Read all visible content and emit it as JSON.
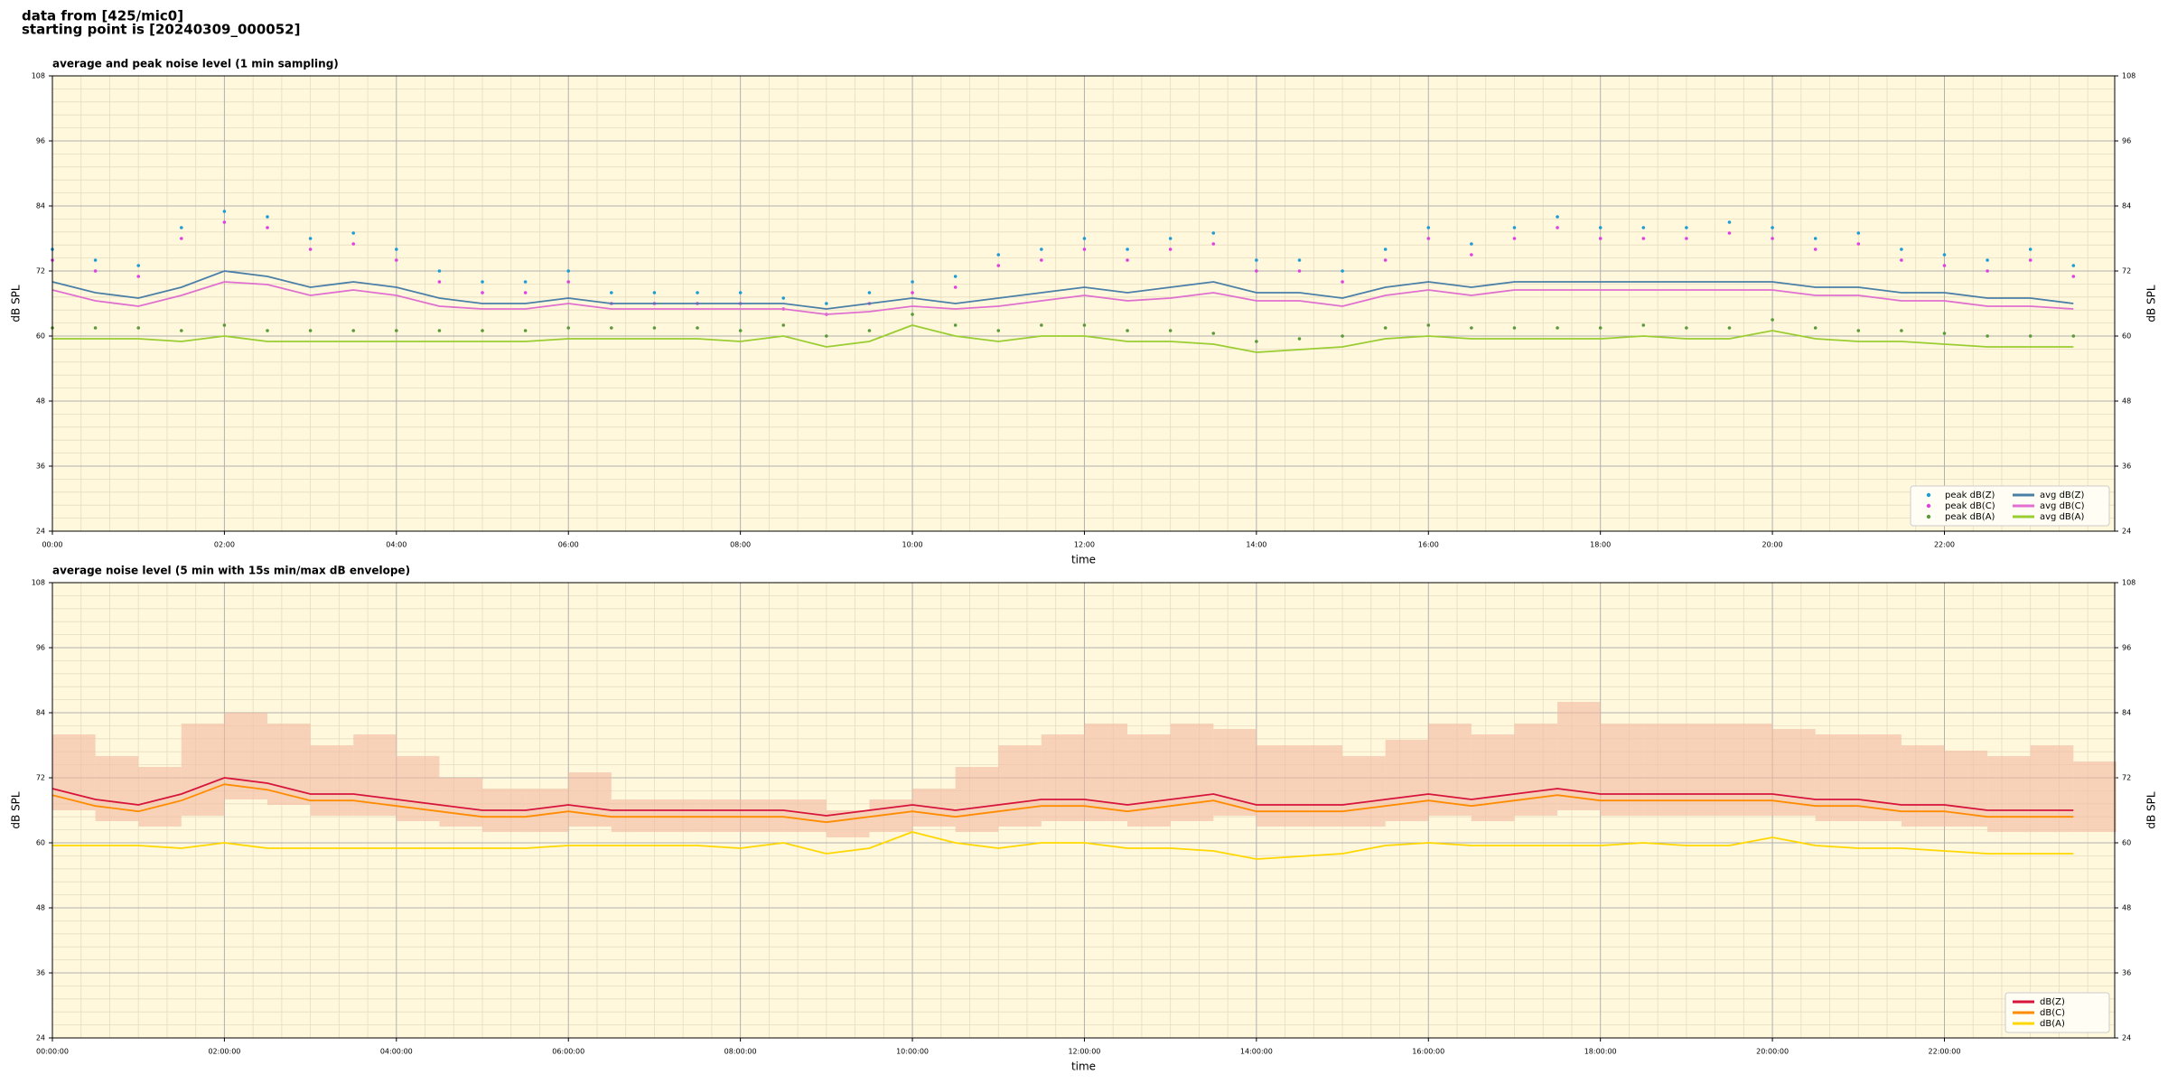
{
  "title_lines": [
    "data from [425/mic0]",
    "starting point is [20240309_000052]"
  ],
  "chart_data": [
    {
      "type": "line",
      "title": "average and peak noise level (1 min sampling)",
      "xlabel": "time",
      "ylabel": "dB SPL",
      "background": "#fff8dc",
      "grid": true,
      "minor_divisions_y": 5,
      "minor_divisions_x": 6,
      "legend": "lower right",
      "legend_columns": 2,
      "xlim": [
        0,
        23.98
      ],
      "ylim": [
        24,
        108
      ],
      "yticks": [
        24,
        36,
        48,
        60,
        72,
        84,
        96,
        108
      ],
      "xticks": [
        {
          "value": 0,
          "label": "00:00"
        },
        {
          "value": 2,
          "label": "02:00"
        },
        {
          "value": 4,
          "label": "04:00"
        },
        {
          "value": 6,
          "label": "06:00"
        },
        {
          "value": 8,
          "label": "08:00"
        },
        {
          "value": 10,
          "label": "10:00"
        },
        {
          "value": 12,
          "label": "12:00"
        },
        {
          "value": 14,
          "label": "14:00"
        },
        {
          "value": 16,
          "label": "16:00"
        },
        {
          "value": 18,
          "label": "18:00"
        },
        {
          "value": 20,
          "label": "20:00"
        },
        {
          "value": 22,
          "label": "22:00"
        }
      ],
      "x": [
        0,
        0.5,
        1,
        1.5,
        2,
        2.5,
        3,
        3.5,
        4,
        4.5,
        5,
        5.5,
        6,
        6.5,
        7,
        7.5,
        8,
        8.5,
        9,
        9.5,
        10,
        10.5,
        11,
        11.5,
        12,
        12.5,
        13,
        13.5,
        14,
        14.5,
        15,
        15.5,
        16,
        16.5,
        17,
        17.5,
        18,
        18.5,
        19,
        19.5,
        20,
        20.5,
        21,
        21.5,
        22,
        22.5,
        23,
        23.5
      ],
      "series": [
        {
          "name": "peak dB(Z)",
          "style": "dots",
          "color": "#1f9bd6",
          "values": [
            76,
            74,
            73,
            80,
            83,
            82,
            78,
            79,
            76,
            72,
            70,
            70,
            72,
            68,
            68,
            68,
            68,
            67,
            66,
            68,
            70,
            71,
            75,
            76,
            78,
            76,
            78,
            79,
            74,
            74,
            72,
            76,
            80,
            77,
            80,
            82,
            80,
            80,
            80,
            81,
            80,
            78,
            79,
            76,
            75,
            74,
            76,
            73
          ]
        },
        {
          "name": "peak dB(C)",
          "style": "dots",
          "color": "#e040e0",
          "values": [
            74,
            72,
            71,
            78,
            81,
            80,
            76,
            77,
            74,
            70,
            68,
            68,
            70,
            66,
            66,
            66,
            66,
            65,
            64,
            66,
            68,
            69,
            73,
            74,
            76,
            74,
            76,
            77,
            72,
            72,
            70,
            74,
            78,
            75,
            78,
            80,
            78,
            78,
            78,
            79,
            78,
            76,
            77,
            74,
            73,
            72,
            74,
            71
          ]
        },
        {
          "name": "peak dB(A)",
          "style": "dots",
          "color": "#5a9a3a",
          "values": [
            61.5,
            61.5,
            61.5,
            61,
            62,
            61,
            61,
            61,
            61,
            61,
            61,
            61,
            61.5,
            61.5,
            61.5,
            61.5,
            61,
            62,
            60,
            61,
            64,
            62,
            61,
            62,
            62,
            61,
            61,
            60.5,
            59,
            59.5,
            60,
            61.5,
            62,
            61.5,
            61.5,
            61.5,
            61.5,
            62,
            61.5,
            61.5,
            63,
            61.5,
            61,
            61,
            60.5,
            60,
            60,
            60
          ]
        },
        {
          "name": "avg dB(Z)",
          "style": "line",
          "color": "#4a7fa8",
          "values": [
            70,
            68,
            67,
            69,
            72,
            71,
            69,
            70,
            69,
            67,
            66,
            66,
            67,
            66,
            66,
            66,
            66,
            66,
            65,
            66,
            67,
            66,
            67,
            68,
            69,
            68,
            69,
            70,
            68,
            68,
            67,
            69,
            70,
            69,
            70,
            70,
            70,
            70,
            70,
            70,
            70,
            69,
            69,
            68,
            68,
            67,
            67,
            66
          ]
        },
        {
          "name": "avg dB(C)",
          "style": "line",
          "color": "#e070d0",
          "values": [
            68.5,
            66.5,
            65.5,
            67.5,
            70,
            69.5,
            67.5,
            68.5,
            67.5,
            65.5,
            65,
            65,
            66,
            65,
            65,
            65,
            65,
            65,
            64,
            64.5,
            65.5,
            65,
            65.5,
            66.5,
            67.5,
            66.5,
            67,
            68,
            66.5,
            66.5,
            65.5,
            67.5,
            68.5,
            67.5,
            68.5,
            68.5,
            68.5,
            68.5,
            68.5,
            68.5,
            68.5,
            67.5,
            67.5,
            66.5,
            66.5,
            65.5,
            65.5,
            65
          ]
        },
        {
          "name": "avg dB(A)",
          "style": "line",
          "color": "#9acd32",
          "values": [
            59.5,
            59.5,
            59.5,
            59,
            60,
            59,
            59,
            59,
            59,
            59,
            59,
            59,
            59.5,
            59.5,
            59.5,
            59.5,
            59,
            60,
            58,
            59,
            62,
            60,
            59,
            60,
            60,
            59,
            59,
            58.5,
            57,
            57.5,
            58,
            59.5,
            60,
            59.5,
            59.5,
            59.5,
            59.5,
            60,
            59.5,
            59.5,
            61,
            59.5,
            59,
            59,
            58.5,
            58,
            58,
            58
          ]
        }
      ]
    },
    {
      "type": "line",
      "title": "average noise level (5 min with 15s min/max dB envelope)",
      "xlabel": "time",
      "ylabel": "dB SPL",
      "background": "#fff8dc",
      "grid": true,
      "minor_divisions_y": 5,
      "minor_divisions_x": 6,
      "legend": "lower right",
      "legend_columns": 1,
      "xlim": [
        0,
        23.98
      ],
      "ylim": [
        24,
        108
      ],
      "yticks": [
        24,
        36,
        48,
        60,
        72,
        84,
        96,
        108
      ],
      "xticks": [
        {
          "value": 0,
          "label": "00:00:00"
        },
        {
          "value": 2,
          "label": "02:00:00"
        },
        {
          "value": 4,
          "label": "04:00:00"
        },
        {
          "value": 6,
          "label": "06:00:00"
        },
        {
          "value": 8,
          "label": "08:00:00"
        },
        {
          "value": 10,
          "label": "10:00:00"
        },
        {
          "value": 12,
          "label": "12:00:00"
        },
        {
          "value": 14,
          "label": "14:00:00"
        },
        {
          "value": 16,
          "label": "16:00:00"
        },
        {
          "value": 18,
          "label": "18:00:00"
        },
        {
          "value": 20,
          "label": "20:00:00"
        },
        {
          "value": 22,
          "label": "22:00:00"
        }
      ],
      "x": [
        0,
        0.5,
        1,
        1.5,
        2,
        2.5,
        3,
        3.5,
        4,
        4.5,
        5,
        5.5,
        6,
        6.5,
        7,
        7.5,
        8,
        8.5,
        9,
        9.5,
        10,
        10.5,
        11,
        11.5,
        12,
        12.5,
        13,
        13.5,
        14,
        14.5,
        15,
        15.5,
        16,
        16.5,
        17,
        17.5,
        18,
        18.5,
        19,
        19.5,
        20,
        20.5,
        21,
        21.5,
        22,
        22.5,
        23,
        23.5
      ],
      "envelope": {
        "color": "#f4b9a0",
        "lower": [
          66,
          64,
          63,
          65,
          68,
          67,
          65,
          65,
          64,
          63,
          62,
          62,
          63,
          62,
          62,
          62,
          62,
          62,
          61,
          62,
          63,
          62,
          63,
          64,
          64,
          63,
          64,
          65,
          63,
          63,
          63,
          64,
          65,
          64,
          65,
          66,
          65,
          65,
          65,
          65,
          65,
          64,
          64,
          63,
          63,
          62,
          62,
          62
        ],
        "upper": [
          80,
          76,
          74,
          82,
          84,
          82,
          78,
          80,
          76,
          72,
          70,
          70,
          73,
          68,
          68,
          68,
          68,
          68,
          66,
          68,
          70,
          74,
          78,
          80,
          82,
          80,
          82,
          81,
          78,
          78,
          76,
          79,
          82,
          80,
          82,
          86,
          82,
          82,
          82,
          82,
          81,
          80,
          80,
          78,
          77,
          76,
          78,
          75
        ]
      },
      "series": [
        {
          "name": "dB(Z)",
          "style": "line",
          "color": "#d6143c",
          "values": [
            70,
            68,
            67,
            69,
            72,
            71,
            69,
            69,
            68,
            67,
            66,
            66,
            67,
            66,
            66,
            66,
            66,
            66,
            65,
            66,
            67,
            66,
            67,
            68,
            68,
            67,
            68,
            69,
            67,
            67,
            67,
            68,
            69,
            68,
            69,
            70,
            69,
            69,
            69,
            69,
            69,
            68,
            68,
            67,
            67,
            66,
            66,
            66
          ]
        },
        {
          "name": "dB(C)",
          "style": "line",
          "color": "#ff8c00",
          "values": [
            68.8,
            66.8,
            65.8,
            67.8,
            70.8,
            69.8,
            67.8,
            67.8,
            66.8,
            65.8,
            64.8,
            64.8,
            65.8,
            64.8,
            64.8,
            64.8,
            64.8,
            64.8,
            63.8,
            64.8,
            65.8,
            64.8,
            65.8,
            66.8,
            66.8,
            65.8,
            66.8,
            67.8,
            65.8,
            65.8,
            65.8,
            66.8,
            67.8,
            66.8,
            67.8,
            68.8,
            67.8,
            67.8,
            67.8,
            67.8,
            67.8,
            66.8,
            66.8,
            65.8,
            65.8,
            64.8,
            64.8,
            64.8
          ]
        },
        {
          "name": "dB(A)",
          "style": "line",
          "color": "#ffd700",
          "values": [
            59.5,
            59.5,
            59.5,
            59,
            60,
            59,
            59,
            59,
            59,
            59,
            59,
            59,
            59.5,
            59.5,
            59.5,
            59.5,
            59,
            60,
            58,
            59,
            62,
            60,
            59,
            60,
            60,
            59,
            59,
            58.5,
            57,
            57.5,
            58,
            59.5,
            60,
            59.5,
            59.5,
            59.5,
            59.5,
            60,
            59.5,
            59.5,
            61,
            59.5,
            59,
            59,
            58.5,
            58,
            58,
            58
          ]
        }
      ]
    }
  ]
}
